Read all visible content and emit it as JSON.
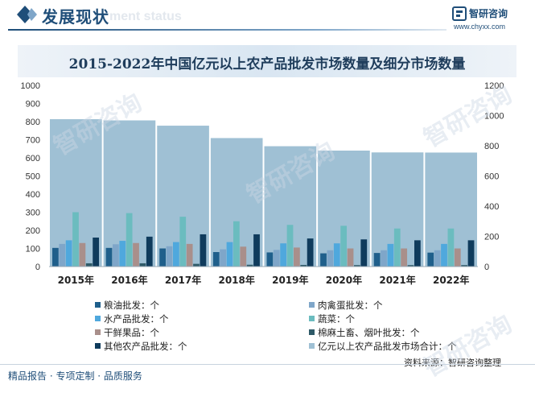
{
  "header": {
    "title": "发展现状",
    "subtitle": "ment status"
  },
  "brand": {
    "name": "智研咨询",
    "url": "www.chyxx.com"
  },
  "source": "资料来源：智研咨询整理",
  "footer": {
    "text": "精品报告 · 专项定制 · 品质服务"
  },
  "watermark": "智研咨询",
  "colors": {
    "grain": "#1f5f8b",
    "meat": "#7fa6c9",
    "aquatic": "#4fa8dd",
    "vegetable": "#6bbcbf",
    "fruit": "#a98f8b",
    "cotton": "#2f5a68",
    "other": "#0f3b5c",
    "total": "#9fc0d4"
  },
  "chart_data": {
    "type": "bar",
    "title": "2015-2022年中国亿元以上农产品批发市场数量及细分市场数量",
    "categories": [
      "2015年",
      "2016年",
      "2017年",
      "2018年",
      "2019年",
      "2020年",
      "2021年",
      "2022年"
    ],
    "left_axis": {
      "ylim": [
        0,
        1000
      ],
      "ticks": [
        "0",
        "100",
        "200",
        "300",
        "400",
        "500",
        "600",
        "700",
        "800",
        "900",
        "1000"
      ]
    },
    "right_axis": {
      "ylim": [
        0,
        1200
      ],
      "ticks": [
        "0",
        "200",
        "400",
        "600",
        "800",
        "1000",
        "1200"
      ]
    },
    "series": [
      {
        "name": "粮油批发：个",
        "key": "grain",
        "axis": "left",
        "values": [
          103,
          103,
          100,
          80,
          78,
          73,
          75,
          77
        ]
      },
      {
        "name": "肉禽蛋批发：个",
        "key": "meat",
        "axis": "left",
        "values": [
          125,
          123,
          112,
          95,
          92,
          90,
          90,
          90
        ]
      },
      {
        "name": "水产品批发：个",
        "key": "aquatic",
        "axis": "left",
        "values": [
          145,
          142,
          135,
          135,
          128,
          128,
          125,
          125
        ]
      },
      {
        "name": "蔬菜：个",
        "key": "vegetable",
        "axis": "left",
        "values": [
          300,
          295,
          275,
          250,
          230,
          225,
          210,
          210
        ]
      },
      {
        "name": "干鲜果品：个",
        "key": "fruit",
        "axis": "left",
        "values": [
          130,
          130,
          125,
          110,
          105,
          100,
          100,
          100
        ]
      },
      {
        "name": "棉麻土畜、烟叶批发：个",
        "key": "cotton",
        "axis": "left",
        "values": [
          18,
          18,
          15,
          10,
          9,
          8,
          8,
          8
        ]
      },
      {
        "name": "其他农产品批发：个",
        "key": "other",
        "axis": "left",
        "values": [
          160,
          165,
          178,
          178,
          155,
          150,
          145,
          145
        ]
      },
      {
        "name": "亿元以上农产品批发市场合计：个",
        "key": "total",
        "axis": "right",
        "values": [
          976,
          968,
          933,
          851,
          797,
          768,
          756,
          755
        ]
      }
    ],
    "legend_position": "bottom"
  }
}
